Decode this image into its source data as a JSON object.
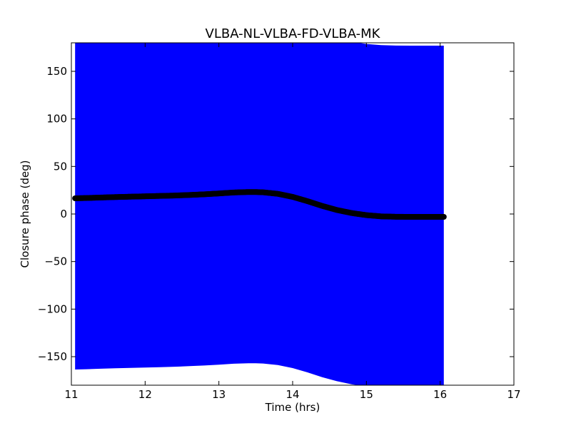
{
  "chart_data": {
    "type": "scatter",
    "title": "VLBA-NL-VLBA-FD-VLBA-MK",
    "xlabel": "Time (hrs)",
    "ylabel": "Closure phase (deg)",
    "xlim": [
      11,
      17
    ],
    "ylim": [
      -180,
      180
    ],
    "xticks": [
      11,
      12,
      13,
      14,
      15,
      16,
      17
    ],
    "yticks": [
      -150,
      -100,
      -50,
      0,
      50,
      100,
      150
    ],
    "xtick_labels": [
      "11",
      "12",
      "13",
      "14",
      "15",
      "16",
      "17"
    ],
    "ytick_labels": [
      "−150",
      "−100",
      "−50",
      "0",
      "50",
      "100",
      "150"
    ],
    "grid": false,
    "error_band_color": "#0000ff",
    "marker_color": "#000000",
    "series": [
      {
        "x": [
          11.05,
          11.2,
          11.4,
          11.6,
          11.8,
          12.0,
          12.2,
          12.4,
          12.6,
          12.8,
          13.0,
          13.2,
          13.4,
          13.5,
          13.6,
          13.8,
          14.0,
          14.2,
          14.4,
          14.6,
          14.8,
          15.0,
          15.2,
          15.4,
          15.6,
          15.8,
          16.0,
          16.05
        ],
        "y": [
          16.5,
          16.8,
          17.3,
          17.8,
          18.2,
          18.6,
          19.0,
          19.4,
          20.0,
          20.7,
          21.6,
          22.6,
          23.1,
          23.1,
          22.8,
          21.2,
          18.0,
          13.5,
          8.5,
          4.2,
          1.0,
          -1.2,
          -2.5,
          -2.9,
          -3.0,
          -3.0,
          -3.0,
          -3.0
        ],
        "y_err": [
          180,
          180,
          180,
          180,
          180,
          180,
          180,
          180,
          180,
          180,
          180,
          180,
          180,
          180,
          180,
          180,
          180,
          180,
          180,
          180,
          180,
          180,
          180,
          180,
          180,
          180,
          180,
          180
        ]
      }
    ]
  }
}
